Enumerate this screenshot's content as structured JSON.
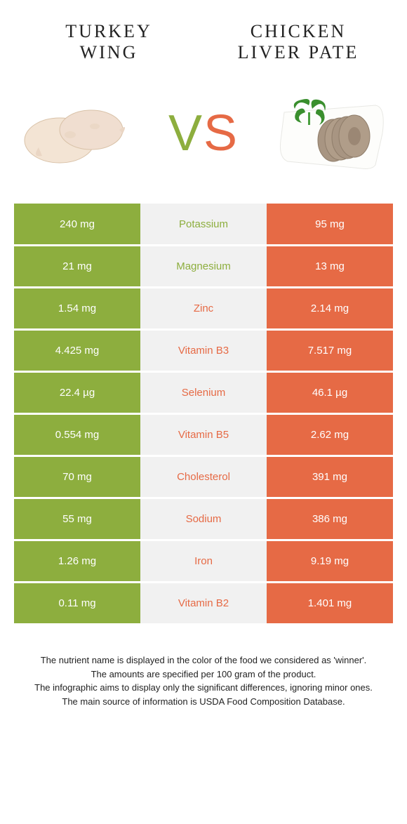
{
  "colors": {
    "green": "#8dae3e",
    "orange": "#e66a45",
    "mid_bg": "#f1f1f1",
    "white": "#ffffff"
  },
  "header": {
    "left_line1": "TURKEY",
    "left_line2": "WING",
    "right_line1": "CHICKEN",
    "right_line2": "LIVER PATE"
  },
  "vs": {
    "v": "V",
    "s": "S"
  },
  "rows": [
    {
      "left": "240 mg",
      "name": "Potassium",
      "right": "95 mg",
      "winner": "left"
    },
    {
      "left": "21 mg",
      "name": "Magnesium",
      "right": "13 mg",
      "winner": "left"
    },
    {
      "left": "1.54 mg",
      "name": "Zinc",
      "right": "2.14 mg",
      "winner": "right"
    },
    {
      "left": "4.425 mg",
      "name": "Vitamin B3",
      "right": "7.517 mg",
      "winner": "right"
    },
    {
      "left": "22.4 µg",
      "name": "Selenium",
      "right": "46.1 µg",
      "winner": "right"
    },
    {
      "left": "0.554 mg",
      "name": "Vitamin B5",
      "right": "2.62 mg",
      "winner": "right"
    },
    {
      "left": "70 mg",
      "name": "Cholesterol",
      "right": "391 mg",
      "winner": "right"
    },
    {
      "left": "55 mg",
      "name": "Sodium",
      "right": "386 mg",
      "winner": "right"
    },
    {
      "left": "1.26 mg",
      "name": "Iron",
      "right": "9.19 mg",
      "winner": "right"
    },
    {
      "left": "0.11 mg",
      "name": "Vitamin B2",
      "right": "1.401 mg",
      "winner": "right"
    }
  ],
  "footer": {
    "line1": "The nutrient name is displayed in the color of the food we considered as 'winner'.",
    "line2": "The amounts are specified per 100 gram of the product.",
    "line3": "The infographic aims to display only the significant differences, ignoring minor ones.",
    "line4": "The main source of information is USDA Food Composition Database."
  }
}
